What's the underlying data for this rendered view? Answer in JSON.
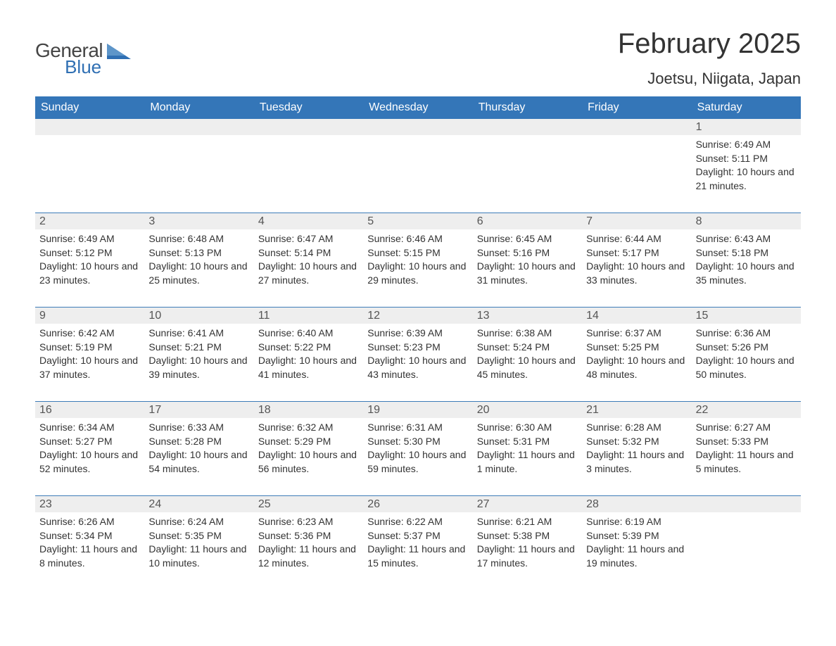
{
  "brand": {
    "general": "General",
    "blue": "Blue"
  },
  "title": "February 2025",
  "location": "Joetsu, Niigata, Japan",
  "colors": {
    "header_bg": "#3476b8",
    "header_text": "#ffffff",
    "strip_bg": "#eeeeee",
    "rule": "#3d7cb8",
    "body_text": "#333333",
    "daynum_text": "#555555",
    "logo_blue": "#2f6fb3",
    "page_bg": "#ffffff"
  },
  "weekdays": [
    "Sunday",
    "Monday",
    "Tuesday",
    "Wednesday",
    "Thursday",
    "Friday",
    "Saturday"
  ],
  "weeks": [
    [
      null,
      null,
      null,
      null,
      null,
      null,
      {
        "n": "1",
        "sr": "Sunrise: 6:49 AM",
        "ss": "Sunset: 5:11 PM",
        "dl": "Daylight: 10 hours and 21 minutes."
      }
    ],
    [
      {
        "n": "2",
        "sr": "Sunrise: 6:49 AM",
        "ss": "Sunset: 5:12 PM",
        "dl": "Daylight: 10 hours and 23 minutes."
      },
      {
        "n": "3",
        "sr": "Sunrise: 6:48 AM",
        "ss": "Sunset: 5:13 PM",
        "dl": "Daylight: 10 hours and 25 minutes."
      },
      {
        "n": "4",
        "sr": "Sunrise: 6:47 AM",
        "ss": "Sunset: 5:14 PM",
        "dl": "Daylight: 10 hours and 27 minutes."
      },
      {
        "n": "5",
        "sr": "Sunrise: 6:46 AM",
        "ss": "Sunset: 5:15 PM",
        "dl": "Daylight: 10 hours and 29 minutes."
      },
      {
        "n": "6",
        "sr": "Sunrise: 6:45 AM",
        "ss": "Sunset: 5:16 PM",
        "dl": "Daylight: 10 hours and 31 minutes."
      },
      {
        "n": "7",
        "sr": "Sunrise: 6:44 AM",
        "ss": "Sunset: 5:17 PM",
        "dl": "Daylight: 10 hours and 33 minutes."
      },
      {
        "n": "8",
        "sr": "Sunrise: 6:43 AM",
        "ss": "Sunset: 5:18 PM",
        "dl": "Daylight: 10 hours and 35 minutes."
      }
    ],
    [
      {
        "n": "9",
        "sr": "Sunrise: 6:42 AM",
        "ss": "Sunset: 5:19 PM",
        "dl": "Daylight: 10 hours and 37 minutes."
      },
      {
        "n": "10",
        "sr": "Sunrise: 6:41 AM",
        "ss": "Sunset: 5:21 PM",
        "dl": "Daylight: 10 hours and 39 minutes."
      },
      {
        "n": "11",
        "sr": "Sunrise: 6:40 AM",
        "ss": "Sunset: 5:22 PM",
        "dl": "Daylight: 10 hours and 41 minutes."
      },
      {
        "n": "12",
        "sr": "Sunrise: 6:39 AM",
        "ss": "Sunset: 5:23 PM",
        "dl": "Daylight: 10 hours and 43 minutes."
      },
      {
        "n": "13",
        "sr": "Sunrise: 6:38 AM",
        "ss": "Sunset: 5:24 PM",
        "dl": "Daylight: 10 hours and 45 minutes."
      },
      {
        "n": "14",
        "sr": "Sunrise: 6:37 AM",
        "ss": "Sunset: 5:25 PM",
        "dl": "Daylight: 10 hours and 48 minutes."
      },
      {
        "n": "15",
        "sr": "Sunrise: 6:36 AM",
        "ss": "Sunset: 5:26 PM",
        "dl": "Daylight: 10 hours and 50 minutes."
      }
    ],
    [
      {
        "n": "16",
        "sr": "Sunrise: 6:34 AM",
        "ss": "Sunset: 5:27 PM",
        "dl": "Daylight: 10 hours and 52 minutes."
      },
      {
        "n": "17",
        "sr": "Sunrise: 6:33 AM",
        "ss": "Sunset: 5:28 PM",
        "dl": "Daylight: 10 hours and 54 minutes."
      },
      {
        "n": "18",
        "sr": "Sunrise: 6:32 AM",
        "ss": "Sunset: 5:29 PM",
        "dl": "Daylight: 10 hours and 56 minutes."
      },
      {
        "n": "19",
        "sr": "Sunrise: 6:31 AM",
        "ss": "Sunset: 5:30 PM",
        "dl": "Daylight: 10 hours and 59 minutes."
      },
      {
        "n": "20",
        "sr": "Sunrise: 6:30 AM",
        "ss": "Sunset: 5:31 PM",
        "dl": "Daylight: 11 hours and 1 minute."
      },
      {
        "n": "21",
        "sr": "Sunrise: 6:28 AM",
        "ss": "Sunset: 5:32 PM",
        "dl": "Daylight: 11 hours and 3 minutes."
      },
      {
        "n": "22",
        "sr": "Sunrise: 6:27 AM",
        "ss": "Sunset: 5:33 PM",
        "dl": "Daylight: 11 hours and 5 minutes."
      }
    ],
    [
      {
        "n": "23",
        "sr": "Sunrise: 6:26 AM",
        "ss": "Sunset: 5:34 PM",
        "dl": "Daylight: 11 hours and 8 minutes."
      },
      {
        "n": "24",
        "sr": "Sunrise: 6:24 AM",
        "ss": "Sunset: 5:35 PM",
        "dl": "Daylight: 11 hours and 10 minutes."
      },
      {
        "n": "25",
        "sr": "Sunrise: 6:23 AM",
        "ss": "Sunset: 5:36 PM",
        "dl": "Daylight: 11 hours and 12 minutes."
      },
      {
        "n": "26",
        "sr": "Sunrise: 6:22 AM",
        "ss": "Sunset: 5:37 PM",
        "dl": "Daylight: 11 hours and 15 minutes."
      },
      {
        "n": "27",
        "sr": "Sunrise: 6:21 AM",
        "ss": "Sunset: 5:38 PM",
        "dl": "Daylight: 11 hours and 17 minutes."
      },
      {
        "n": "28",
        "sr": "Sunrise: 6:19 AM",
        "ss": "Sunset: 5:39 PM",
        "dl": "Daylight: 11 hours and 19 minutes."
      },
      null
    ]
  ]
}
